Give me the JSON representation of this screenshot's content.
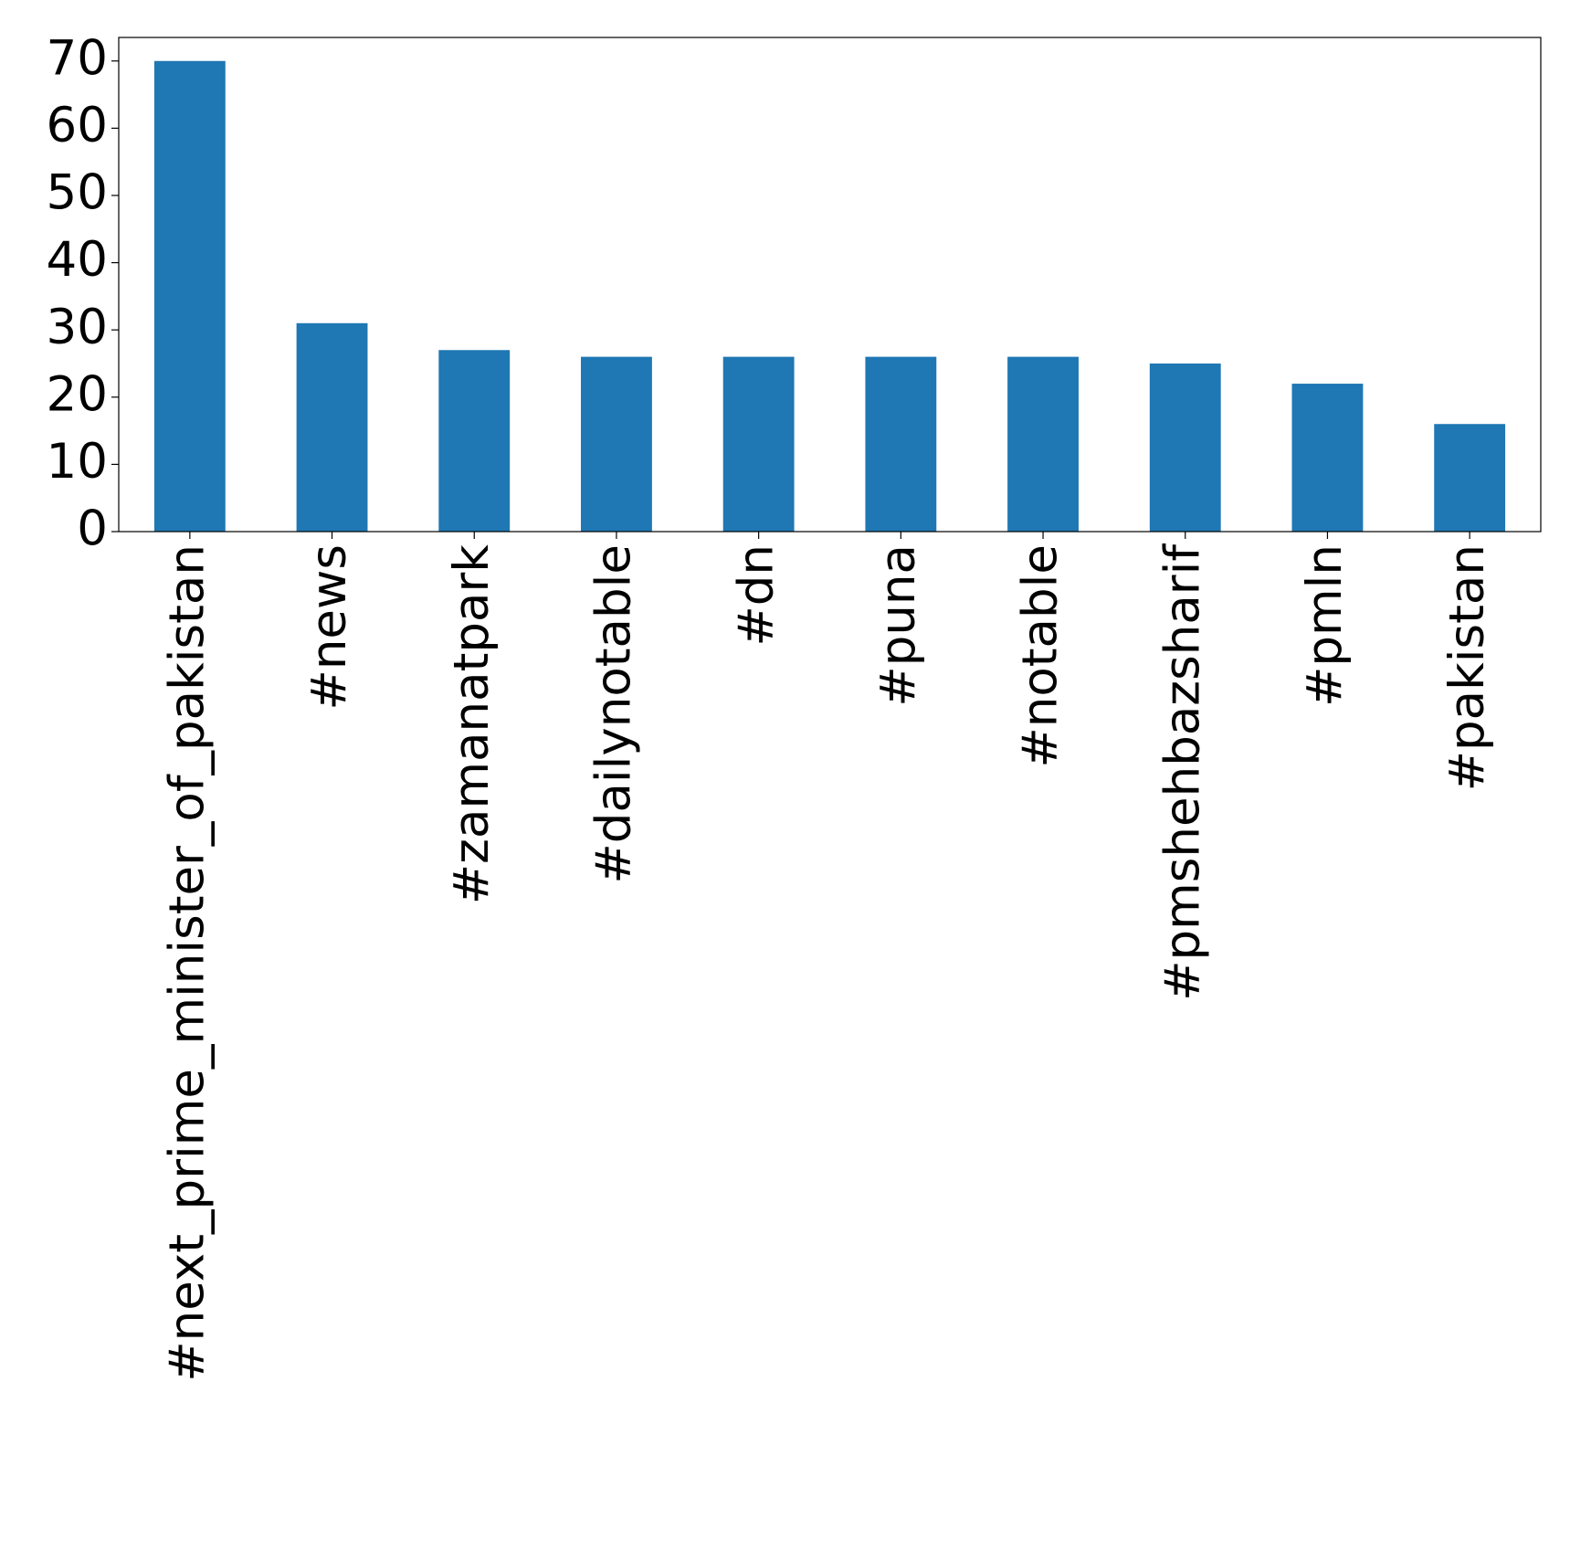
{
  "chart_data": {
    "type": "bar",
    "categories": [
      "#next_prime_minister_of_pakistan",
      "#news",
      "#zamanatpark",
      "#dailynotable",
      "#dn",
      "#puna",
      "#notable",
      "#pmshehbazsharif",
      "#pmln",
      "#pakistan"
    ],
    "values": [
      70,
      31,
      27,
      26,
      26,
      26,
      26,
      25,
      22,
      16
    ],
    "color": "#1f77b4",
    "ylim": [
      0,
      73.5
    ],
    "yticks": [
      0,
      10,
      20,
      30,
      40,
      50,
      60,
      70
    ],
    "grid": false
  }
}
